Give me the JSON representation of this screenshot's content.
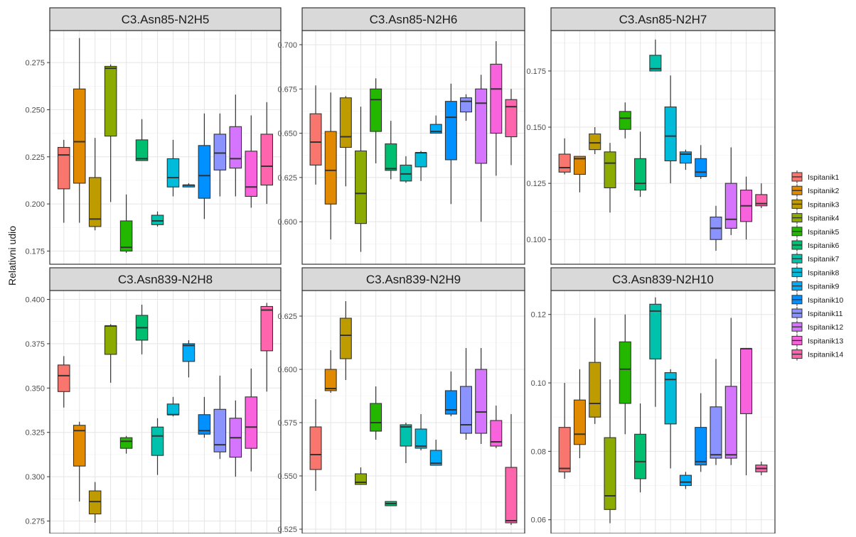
{
  "ylabel": "Relativni udio",
  "legend": {
    "position": "right",
    "items": [
      "Ispitanik1",
      "Ispitanik2",
      "Ispitanik3",
      "Ispitanik4",
      "Ispitanik5",
      "Ispitanik6",
      "Ispitanik7",
      "Ispitanik8",
      "Ispitanik9",
      "Ispitanik10",
      "Ispitanik11",
      "Ispitanik12",
      "Ispitanik13",
      "Ispitanik14"
    ]
  },
  "colors": [
    "#F8766D",
    "#E18A00",
    "#BE9C00",
    "#8CAB00",
    "#24B700",
    "#00BE70",
    "#00C1AB",
    "#00BBDA",
    "#00ACFC",
    "#0090FF",
    "#8B93FF",
    "#D575FE",
    "#F962DD",
    "#FF65AC"
  ],
  "chart_data": [
    {
      "type": "boxplot",
      "title": "C3.Asn85-N2H5",
      "ylim": [
        0.168,
        0.292
      ],
      "yticks": [
        0.175,
        0.2,
        0.225,
        0.25,
        0.275
      ],
      "ytick_labels": [
        "0.175",
        "0.200",
        "0.225",
        "0.250",
        "0.275"
      ],
      "boxes": [
        {
          "series": "Ispitanik1",
          "min": 0.19,
          "q1": 0.208,
          "median": 0.226,
          "q3": 0.23,
          "max": 0.234
        },
        {
          "series": "Ispitanik2",
          "min": 0.19,
          "q1": 0.211,
          "median": 0.233,
          "q3": 0.261,
          "max": 0.288
        },
        {
          "series": "Ispitanik3",
          "min": 0.186,
          "q1": 0.188,
          "median": 0.192,
          "q3": 0.214,
          "max": 0.235
        },
        {
          "series": "Ispitanik4",
          "min": 0.201,
          "q1": 0.236,
          "median": 0.272,
          "q3": 0.273,
          "max": 0.274
        },
        {
          "series": "Ispitanik5",
          "min": 0.174,
          "q1": 0.175,
          "median": 0.177,
          "q3": 0.191,
          "max": 0.205
        },
        {
          "series": "Ispitanik6",
          "min": 0.223,
          "q1": 0.223,
          "median": 0.224,
          "q3": 0.234,
          "max": 0.245
        },
        {
          "series": "Ispitanik7",
          "min": 0.188,
          "q1": 0.189,
          "median": 0.191,
          "q3": 0.194,
          "max": 0.196
        },
        {
          "series": "Ispitanik8",
          "min": 0.204,
          "q1": 0.209,
          "median": 0.214,
          "q3": 0.224,
          "max": 0.234
        },
        {
          "series": "Ispitanik9",
          "min": 0.209,
          "q1": 0.209,
          "median": 0.21,
          "q3": 0.21,
          "max": 0.211
        },
        {
          "series": "Ispitanik10",
          "min": 0.192,
          "q1": 0.203,
          "median": 0.215,
          "q3": 0.231,
          "max": 0.248
        },
        {
          "series": "Ispitanik11",
          "min": 0.204,
          "q1": 0.218,
          "median": 0.227,
          "q3": 0.237,
          "max": 0.248
        },
        {
          "series": "Ispitanik12",
          "min": 0.204,
          "q1": 0.219,
          "median": 0.224,
          "q3": 0.241,
          "max": 0.258
        },
        {
          "series": "Ispitanik13",
          "min": 0.198,
          "q1": 0.204,
          "median": 0.209,
          "q3": 0.228,
          "max": 0.247
        },
        {
          "series": "Ispitanik14",
          "min": 0.2,
          "q1": 0.21,
          "median": 0.22,
          "q3": 0.237,
          "max": 0.254
        }
      ]
    },
    {
      "type": "boxplot",
      "title": "C3.Asn85-N2H6",
      "ylim": [
        0.576,
        0.708
      ],
      "yticks": [
        0.6,
        0.625,
        0.65,
        0.675,
        0.7
      ],
      "ytick_labels": [
        "0.600",
        "0.625",
        "0.650",
        "0.675",
        "0.700"
      ],
      "boxes": [
        {
          "series": "Ispitanik1",
          "min": 0.621,
          "q1": 0.632,
          "median": 0.645,
          "q3": 0.661,
          "max": 0.677
        },
        {
          "series": "Ispitanik2",
          "min": 0.59,
          "q1": 0.61,
          "median": 0.629,
          "q3": 0.651,
          "max": 0.673
        },
        {
          "series": "Ispitanik3",
          "min": 0.62,
          "q1": 0.642,
          "median": 0.648,
          "q3": 0.67,
          "max": 0.671
        },
        {
          "series": "Ispitanik4",
          "min": 0.583,
          "q1": 0.599,
          "median": 0.616,
          "q3": 0.64,
          "max": 0.665
        },
        {
          "series": "Ispitanik5",
          "min": 0.633,
          "q1": 0.651,
          "median": 0.669,
          "q3": 0.675,
          "max": 0.681
        },
        {
          "series": "Ispitanik6",
          "min": 0.624,
          "q1": 0.629,
          "median": 0.63,
          "q3": 0.644,
          "max": 0.657
        },
        {
          "series": "Ispitanik7",
          "min": 0.622,
          "q1": 0.623,
          "median": 0.627,
          "q3": 0.632,
          "max": 0.637
        },
        {
          "series": "Ispitanik8",
          "min": 0.623,
          "q1": 0.631,
          "median": 0.639,
          "q3": 0.639,
          "max": 0.64
        },
        {
          "series": "Ispitanik9",
          "min": 0.65,
          "q1": 0.65,
          "median": 0.651,
          "q3": 0.655,
          "max": 0.66
        },
        {
          "series": "Ispitanik10",
          "min": 0.61,
          "q1": 0.635,
          "median": 0.659,
          "q3": 0.668,
          "max": 0.678
        },
        {
          "series": "Ispitanik11",
          "min": 0.657,
          "q1": 0.662,
          "median": 0.668,
          "q3": 0.67,
          "max": 0.672
        },
        {
          "series": "Ispitanik12",
          "min": 0.6,
          "q1": 0.633,
          "median": 0.667,
          "q3": 0.675,
          "max": 0.683
        },
        {
          "series": "Ispitanik13",
          "min": 0.626,
          "q1": 0.65,
          "median": 0.675,
          "q3": 0.689,
          "max": 0.702
        },
        {
          "series": "Ispitanik14",
          "min": 0.632,
          "q1": 0.648,
          "median": 0.665,
          "q3": 0.669,
          "max": 0.675
        }
      ]
    },
    {
      "type": "boxplot",
      "title": "C3.Asn85-N2H7",
      "ylim": [
        0.089,
        0.193
      ],
      "yticks": [
        0.1,
        0.125,
        0.15,
        0.175
      ],
      "ytick_labels": [
        "0.100",
        "0.125",
        "0.150",
        "0.175"
      ],
      "boxes": [
        {
          "series": "Ispitanik1",
          "min": 0.129,
          "q1": 0.13,
          "median": 0.132,
          "q3": 0.138,
          "max": 0.145
        },
        {
          "series": "Ispitanik2",
          "min": 0.121,
          "q1": 0.129,
          "median": 0.136,
          "q3": 0.137,
          "max": 0.137
        },
        {
          "series": "Ispitanik3",
          "min": 0.138,
          "q1": 0.14,
          "median": 0.143,
          "q3": 0.147,
          "max": 0.15
        },
        {
          "series": "Ispitanik4",
          "min": 0.112,
          "q1": 0.123,
          "median": 0.134,
          "q3": 0.139,
          "max": 0.143
        },
        {
          "series": "Ispitanik5",
          "min": 0.145,
          "q1": 0.149,
          "median": 0.154,
          "q3": 0.157,
          "max": 0.161
        },
        {
          "series": "Ispitanik6",
          "min": 0.119,
          "q1": 0.122,
          "median": 0.125,
          "q3": 0.136,
          "max": 0.148
        },
        {
          "series": "Ispitanik7",
          "min": 0.175,
          "q1": 0.175,
          "median": 0.176,
          "q3": 0.182,
          "max": 0.189
        },
        {
          "series": "Ispitanik8",
          "min": 0.125,
          "q1": 0.135,
          "median": 0.146,
          "q3": 0.159,
          "max": 0.173
        },
        {
          "series": "Ispitanik9",
          "min": 0.131,
          "q1": 0.134,
          "median": 0.138,
          "q3": 0.139,
          "max": 0.14
        },
        {
          "series": "Ispitanik10",
          "min": 0.127,
          "q1": 0.128,
          "median": 0.13,
          "q3": 0.136,
          "max": 0.142
        },
        {
          "series": "Ispitanik11",
          "min": 0.095,
          "q1": 0.1,
          "median": 0.105,
          "q3": 0.11,
          "max": 0.115
        },
        {
          "series": "Ispitanik12",
          "min": 0.102,
          "q1": 0.105,
          "median": 0.109,
          "q3": 0.125,
          "max": 0.141
        },
        {
          "series": "Ispitanik13",
          "min": 0.1,
          "q1": 0.108,
          "median": 0.115,
          "q3": 0.122,
          "max": 0.128
        },
        {
          "series": "Ispitanik14",
          "min": 0.114,
          "q1": 0.115,
          "median": 0.116,
          "q3": 0.12,
          "max": 0.125
        }
      ]
    },
    {
      "type": "boxplot",
      "title": "C3.Asn839-N2H8",
      "ylim": [
        0.268,
        0.405
      ],
      "yticks": [
        0.275,
        0.3,
        0.325,
        0.35,
        0.375,
        0.4
      ],
      "ytick_labels": [
        "0.275",
        "0.300",
        "0.325",
        "0.350",
        "0.375",
        "0.400"
      ],
      "boxes": [
        {
          "series": "Ispitanik1",
          "min": 0.339,
          "q1": 0.348,
          "median": 0.357,
          "q3": 0.363,
          "max": 0.368
        },
        {
          "series": "Ispitanik2",
          "min": 0.286,
          "q1": 0.306,
          "median": 0.326,
          "q3": 0.329,
          "max": 0.331
        },
        {
          "series": "Ispitanik3",
          "min": 0.274,
          "q1": 0.279,
          "median": 0.286,
          "q3": 0.292,
          "max": 0.297
        },
        {
          "series": "Ispitanik4",
          "min": 0.353,
          "q1": 0.369,
          "median": 0.385,
          "q3": 0.385,
          "max": 0.386
        },
        {
          "series": "Ispitanik5",
          "min": 0.313,
          "q1": 0.316,
          "median": 0.32,
          "q3": 0.322,
          "max": 0.323
        },
        {
          "series": "Ispitanik6",
          "min": 0.369,
          "q1": 0.377,
          "median": 0.384,
          "q3": 0.391,
          "max": 0.397
        },
        {
          "series": "Ispitanik7",
          "min": 0.301,
          "q1": 0.312,
          "median": 0.323,
          "q3": 0.328,
          "max": 0.333
        },
        {
          "series": "Ispitanik8",
          "min": 0.334,
          "q1": 0.335,
          "median": 0.335,
          "q3": 0.341,
          "max": 0.345
        },
        {
          "series": "Ispitanik9",
          "min": 0.356,
          "q1": 0.365,
          "median": 0.374,
          "q3": 0.375,
          "max": 0.377
        },
        {
          "series": "Ispitanik10",
          "min": 0.322,
          "q1": 0.324,
          "median": 0.326,
          "q3": 0.335,
          "max": 0.345
        },
        {
          "series": "Ispitanik11",
          "min": 0.31,
          "q1": 0.314,
          "median": 0.318,
          "q3": 0.338,
          "max": 0.357
        },
        {
          "series": "Ispitanik12",
          "min": 0.3,
          "q1": 0.311,
          "median": 0.322,
          "q3": 0.333,
          "max": 0.343
        },
        {
          "series": "Ispitanik13",
          "min": 0.303,
          "q1": 0.316,
          "median": 0.328,
          "q3": 0.345,
          "max": 0.361
        },
        {
          "series": "Ispitanik14",
          "min": 0.348,
          "q1": 0.371,
          "median": 0.394,
          "q3": 0.396,
          "max": 0.398
        }
      ]
    },
    {
      "type": "boxplot",
      "title": "C3.Asn839-N2H9",
      "ylim": [
        0.523,
        0.637
      ],
      "yticks": [
        0.525,
        0.55,
        0.575,
        0.6,
        0.625
      ],
      "ytick_labels": [
        "0.525",
        "0.550",
        "0.575",
        "0.600",
        "0.625"
      ],
      "boxes": [
        {
          "series": "Ispitanik1",
          "min": 0.543,
          "q1": 0.553,
          "median": 0.56,
          "q3": 0.573,
          "max": 0.586
        },
        {
          "series": "Ispitanik2",
          "min": 0.589,
          "q1": 0.59,
          "median": 0.591,
          "q3": 0.6,
          "max": 0.609
        },
        {
          "series": "Ispitanik3",
          "min": 0.595,
          "q1": 0.605,
          "median": 0.616,
          "q3": 0.624,
          "max": 0.632
        },
        {
          "series": "Ispitanik4",
          "min": 0.546,
          "q1": 0.546,
          "median": 0.547,
          "q3": 0.551,
          "max": 0.554
        },
        {
          "series": "Ispitanik5",
          "min": 0.567,
          "q1": 0.571,
          "median": 0.575,
          "q3": 0.584,
          "max": 0.592
        },
        {
          "series": "Ispitanik6",
          "min": 0.536,
          "q1": 0.536,
          "median": 0.537,
          "q3": 0.538,
          "max": 0.538
        },
        {
          "series": "Ispitanik7",
          "min": 0.556,
          "q1": 0.564,
          "median": 0.573,
          "q3": 0.574,
          "max": 0.575
        },
        {
          "series": "Ispitanik8",
          "min": 0.562,
          "q1": 0.563,
          "median": 0.564,
          "q3": 0.572,
          "max": 0.579
        },
        {
          "series": "Ispitanik9",
          "min": 0.555,
          "q1": 0.555,
          "median": 0.556,
          "q3": 0.562,
          "max": 0.567
        },
        {
          "series": "Ispitanik10",
          "min": 0.578,
          "q1": 0.579,
          "median": 0.581,
          "q3": 0.59,
          "max": 0.599
        },
        {
          "series": "Ispitanik11",
          "min": 0.567,
          "q1": 0.57,
          "median": 0.574,
          "q3": 0.592,
          "max": 0.61
        },
        {
          "series": "Ispitanik12",
          "min": 0.565,
          "q1": 0.57,
          "median": 0.58,
          "q3": 0.6,
          "max": 0.61
        },
        {
          "series": "Ispitanik13",
          "min": 0.563,
          "q1": 0.564,
          "median": 0.566,
          "q3": 0.576,
          "max": 0.583
        },
        {
          "series": "Ispitanik14",
          "min": 0.527,
          "q1": 0.528,
          "median": 0.529,
          "q3": 0.554,
          "max": 0.579
        }
      ]
    },
    {
      "type": "boxplot",
      "title": "C3.Asn839-N2H10",
      "ylim": [
        0.056,
        0.127
      ],
      "yticks": [
        0.06,
        0.08,
        0.1,
        0.12
      ],
      "ytick_labels": [
        "0.06",
        "0.08",
        "0.10",
        "0.12"
      ],
      "boxes": [
        {
          "series": "Ispitanik1",
          "min": 0.072,
          "q1": 0.074,
          "median": 0.075,
          "q3": 0.087,
          "max": 0.1
        },
        {
          "series": "Ispitanik2",
          "min": 0.078,
          "q1": 0.082,
          "median": 0.085,
          "q3": 0.095,
          "max": 0.104
        },
        {
          "series": "Ispitanik3",
          "min": 0.088,
          "q1": 0.09,
          "median": 0.094,
          "q3": 0.106,
          "max": 0.119
        },
        {
          "series": "Ispitanik4",
          "min": 0.059,
          "q1": 0.063,
          "median": 0.067,
          "q3": 0.084,
          "max": 0.101
        },
        {
          "series": "Ispitanik5",
          "min": 0.085,
          "q1": 0.094,
          "median": 0.104,
          "q3": 0.112,
          "max": 0.12
        },
        {
          "series": "Ispitanik6",
          "min": 0.068,
          "q1": 0.072,
          "median": 0.077,
          "q3": 0.085,
          "max": 0.094
        },
        {
          "series": "Ispitanik7",
          "min": 0.093,
          "q1": 0.107,
          "median": 0.121,
          "q3": 0.123,
          "max": 0.125
        },
        {
          "series": "Ispitanik8",
          "min": 0.075,
          "q1": 0.088,
          "median": 0.101,
          "q3": 0.103,
          "max": 0.104
        },
        {
          "series": "Ispitanik9",
          "min": 0.069,
          "q1": 0.07,
          "median": 0.071,
          "q3": 0.073,
          "max": 0.074
        },
        {
          "series": "Ispitanik10",
          "min": 0.074,
          "q1": 0.076,
          "median": 0.077,
          "q3": 0.087,
          "max": 0.097
        },
        {
          "series": "Ispitanik11",
          "min": 0.076,
          "q1": 0.078,
          "median": 0.079,
          "q3": 0.093,
          "max": 0.107
        },
        {
          "series": "Ispitanik12",
          "min": 0.076,
          "q1": 0.078,
          "median": 0.079,
          "q3": 0.099,
          "max": 0.119
        },
        {
          "series": "Ispitanik13",
          "min": 0.073,
          "q1": 0.091,
          "median": 0.11,
          "q3": 0.11,
          "max": 0.11
        },
        {
          "series": "Ispitanik14",
          "min": 0.073,
          "q1": 0.074,
          "median": 0.075,
          "q3": 0.076,
          "max": 0.077
        }
      ]
    }
  ]
}
